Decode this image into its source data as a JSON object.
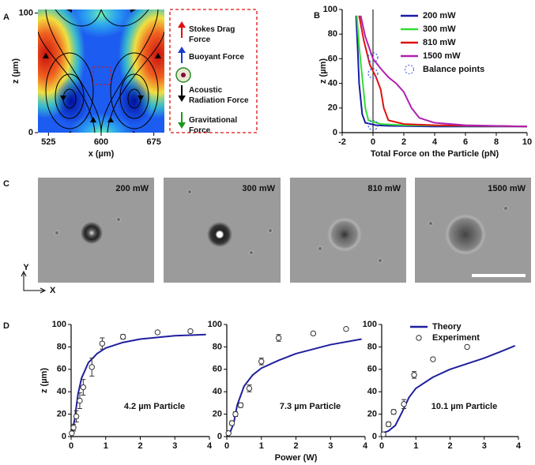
{
  "chart_data": [
    {
      "type": "heatmap",
      "panel": "A",
      "xlabel": "x (µm)",
      "ylabel": "z (µm)",
      "xlim": [
        510,
        690
      ],
      "ylim": [
        0,
        103
      ],
      "xticks": [
        525,
        600,
        675
      ],
      "yticks": [
        0,
        100
      ],
      "annotations": [
        "Stokes Drag Force",
        "Buoyant Force",
        "Acoustic Radiation Force",
        "Gravitational Force"
      ]
    },
    {
      "type": "line",
      "panel": "B",
      "xlabel": "Total Force on the Particle (pN)",
      "ylabel": "z (µm)",
      "xlim": [
        -2,
        10
      ],
      "ylim": [
        0,
        100
      ],
      "xticks": [
        -2,
        0,
        2,
        4,
        6,
        8,
        10
      ],
      "yticks": [
        0,
        20,
        40,
        60,
        80,
        100
      ],
      "legend": "upper right",
      "series": [
        {
          "name": "200 mW",
          "color": "#1a1aa8",
          "x": [
            10,
            4,
            1,
            0.2,
            -0.5,
            -0.7,
            -0.9,
            -1.0,
            -1.1
          ],
          "values": [
            5,
            5,
            5.5,
            6,
            8,
            15,
            40,
            70,
            95
          ]
        },
        {
          "name": "300 mW",
          "color": "#33dd33",
          "x": [
            10,
            2,
            0.5,
            -0.3,
            -0.5,
            -0.7,
            -0.9,
            -1.05
          ],
          "values": [
            5,
            6,
            7,
            10,
            20,
            45,
            70,
            95
          ]
        },
        {
          "name": "810 mW",
          "color": "#e01010",
          "x": [
            10,
            4,
            2,
            1,
            0.7,
            0.5,
            0.2,
            -0.2,
            -0.6,
            -0.9
          ],
          "values": [
            5,
            6,
            7,
            10,
            20,
            35,
            45,
            55,
            75,
            95
          ]
        },
        {
          "name": "1500 mW",
          "color": "#b020b0",
          "x": [
            10,
            6,
            4,
            3,
            2.5,
            2,
            1.5,
            1,
            0.5,
            0,
            -0.5,
            -0.8
          ],
          "values": [
            5,
            6,
            8,
            12,
            20,
            33,
            40,
            45,
            52,
            60,
            78,
            95
          ]
        },
        {
          "name": "Balance points",
          "color": "#3355ee",
          "style": "scatter",
          "x": [
            0,
            0,
            0
          ],
          "values": [
            6,
            48,
            61
          ]
        }
      ]
    },
    {
      "type": "image",
      "panel": "C",
      "labels": [
        "200 mW",
        "300 mW",
        "810 mW",
        "1500 mW"
      ],
      "axis_labels": [
        "Y",
        "X"
      ]
    },
    {
      "type": "line",
      "panel": "D",
      "ylabel": "z (µm)",
      "annotation": "4.2 µm Particle",
      "xlim": [
        0,
        4
      ],
      "ylim": [
        0,
        100
      ],
      "xticks": [
        0,
        1,
        2,
        3,
        4
      ],
      "yticks": [
        0,
        20,
        40,
        60,
        80,
        100
      ],
      "series": [
        {
          "color": "#1f1f9e",
          "x": [
            0,
            0.1,
            0.2,
            0.3,
            0.5,
            0.75,
            1,
            1.5,
            2,
            3,
            3.9
          ],
          "values": [
            0,
            15,
            38,
            52,
            66,
            74,
            79,
            84,
            87,
            90,
            91
          ]
        },
        {
          "color": "#333333",
          "style": "scatter",
          "x": [
            0.02,
            0.07,
            0.15,
            0.25,
            0.35,
            0.6,
            0.9,
            1.5,
            2.5,
            3.45
          ],
          "values": [
            3,
            8,
            18,
            32,
            44,
            62,
            83,
            89,
            93,
            94
          ],
          "errors": [
            1,
            3,
            5,
            7,
            7,
            8,
            5,
            2,
            1,
            1
          ]
        }
      ]
    },
    {
      "type": "line",
      "xlabel": "Power (W)",
      "annotation": "7.3 µm Particle",
      "xlim": [
        0,
        4
      ],
      "ylim": [
        0,
        100
      ],
      "xticks": [
        0,
        1,
        2,
        3,
        4
      ],
      "yticks": [
        0,
        20,
        40,
        60,
        80,
        100
      ],
      "series": [
        {
          "color": "#1f1f9e",
          "x": [
            0,
            0.1,
            0.2,
            0.3,
            0.5,
            0.75,
            1,
            1.5,
            2,
            3,
            3.9
          ],
          "values": [
            2,
            4,
            12,
            28,
            45,
            55,
            61,
            68,
            74,
            82,
            87
          ]
        },
        {
          "color": "#333333",
          "style": "scatter",
          "x": [
            0.05,
            0.15,
            0.25,
            0.4,
            0.65,
            1.0,
            1.5,
            2.5,
            3.45
          ],
          "values": [
            3,
            12,
            20,
            28,
            43,
            67,
            88,
            92,
            96
          ],
          "errors": [
            1,
            2,
            2,
            2,
            3,
            3,
            3,
            1,
            1
          ]
        }
      ]
    },
    {
      "type": "line",
      "annotation": "10.1 µm Particle",
      "legend": "upper left",
      "xlim": [
        0,
        4
      ],
      "ylim": [
        0,
        100
      ],
      "xticks": [
        0,
        1,
        2,
        3,
        4
      ],
      "yticks": [
        0,
        20,
        40,
        60,
        80,
        100
      ],
      "series": [
        {
          "name": "Theory",
          "color": "#1f1f9e",
          "x": [
            0,
            0.2,
            0.4,
            0.6,
            0.8,
            1,
            1.5,
            2,
            2.5,
            3,
            3.5,
            3.9
          ],
          "values": [
            3,
            5,
            10,
            22,
            35,
            43,
            53,
            60,
            65,
            70,
            76,
            81
          ]
        },
        {
          "name": "Experiment",
          "color": "#333333",
          "style": "scatter",
          "x": [
            0.05,
            0.2,
            0.35,
            0.65,
            0.95,
            1.5,
            2.5
          ],
          "values": [
            2,
            11,
            22,
            29,
            55,
            69,
            80
          ],
          "errors": [
            1,
            2,
            2,
            4,
            3,
            1,
            1
          ]
        }
      ]
    }
  ]
}
